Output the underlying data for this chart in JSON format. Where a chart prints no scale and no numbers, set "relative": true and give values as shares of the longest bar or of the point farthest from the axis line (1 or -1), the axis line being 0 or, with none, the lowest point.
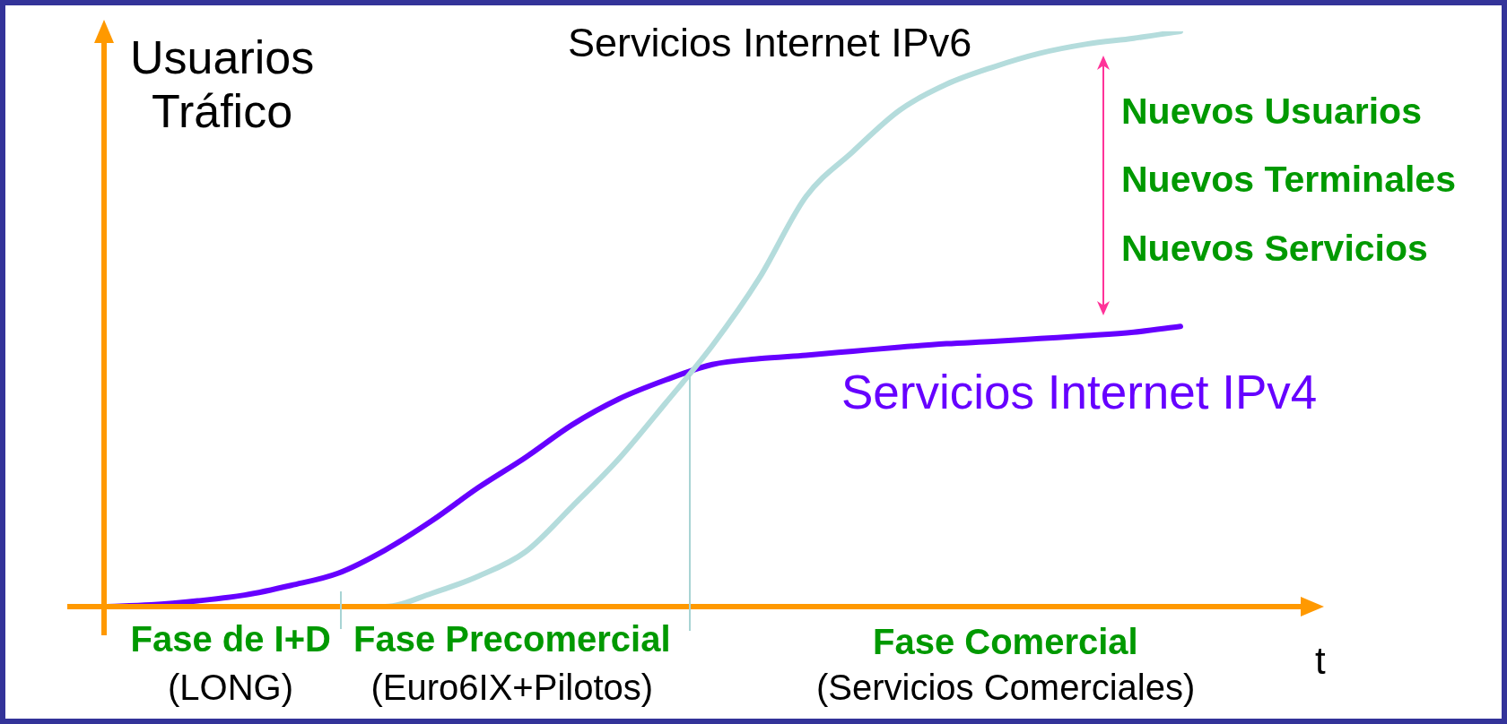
{
  "chart_data": {
    "type": "line",
    "relative": true,
    "ylabel": "Usuarios\nTráfico",
    "xlabel": "t",
    "legend": false,
    "marker": "none",
    "line_style": "solid",
    "categories": [
      null,
      null,
      null,
      null,
      null,
      null,
      null,
      null,
      null,
      null,
      null,
      null,
      null,
      null,
      null,
      null,
      null,
      null,
      null,
      null,
      null,
      null,
      null,
      null
    ],
    "series": [
      {
        "name": "Servicios Internet IPv6",
        "color": "#b4dcdc",
        "values": [
          0,
          0,
          0,
          0,
          0,
          0,
          0,
          0.023,
          0.053,
          0.095,
          0.174,
          0.257,
          0.354,
          0.454,
          0.571,
          0.713,
          0.791,
          0.863,
          0.908,
          0.938,
          0.962,
          0.978,
          0.988,
          1
        ]
      },
      {
        "name": "Servicios Internet IPv4",
        "color": "#6600ff",
        "values": [
          0,
          0.003,
          0.01,
          0.02,
          0.037,
          0.058,
          0.098,
          0.149,
          0.207,
          0.259,
          0.316,
          0.361,
          0.394,
          0.421,
          0.431,
          0.437,
          0.444,
          0.451,
          0.457,
          0.461,
          0.466,
          0.471,
          0.477,
          0.487
        ]
      }
    ],
    "annotations": [
      "Nuevos Usuarios",
      "Nuevos Terminales",
      "Nuevos Servicios",
      "Fase de I+D",
      "(LONG)",
      "Fase Precomercial",
      "(Euro6IX+Pilotos)",
      "Fase Comercial",
      "(Servicios Comerciales)"
    ]
  }
}
